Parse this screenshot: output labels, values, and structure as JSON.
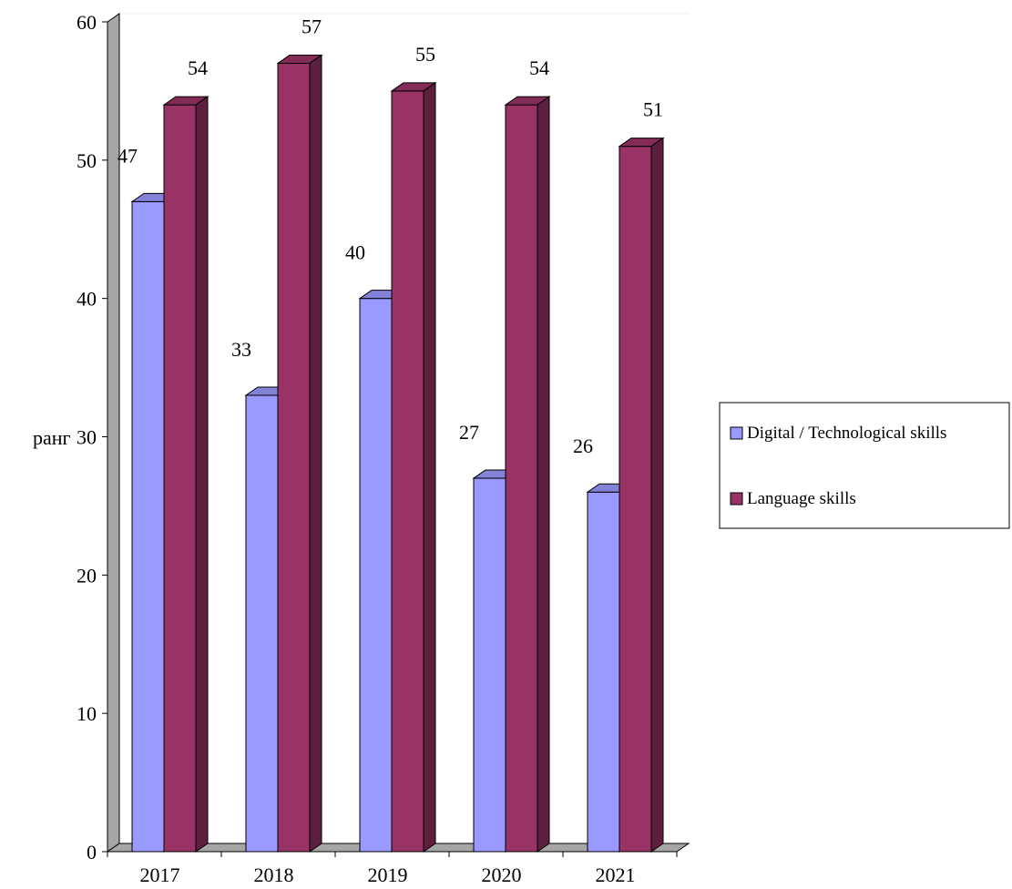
{
  "chart_data": {
    "type": "bar",
    "categories": [
      "2017",
      "2018",
      "2019",
      "2020",
      "2021"
    ],
    "series": [
      {
        "name": "Digital / Technological skills",
        "values": [
          47,
          33,
          40,
          27,
          26
        ],
        "color": "#9999ff"
      },
      {
        "name": "Language skills",
        "values": [
          54,
          57,
          55,
          54,
          51
        ],
        "color": "#993366"
      }
    ],
    "title": "",
    "xlabel": "",
    "ylabel": "ранг",
    "ylim": [
      0,
      60
    ],
    "yticks": [
      0,
      10,
      20,
      30,
      40,
      50,
      60
    ],
    "grid": false,
    "legend_position": "right",
    "three_d": true
  }
}
